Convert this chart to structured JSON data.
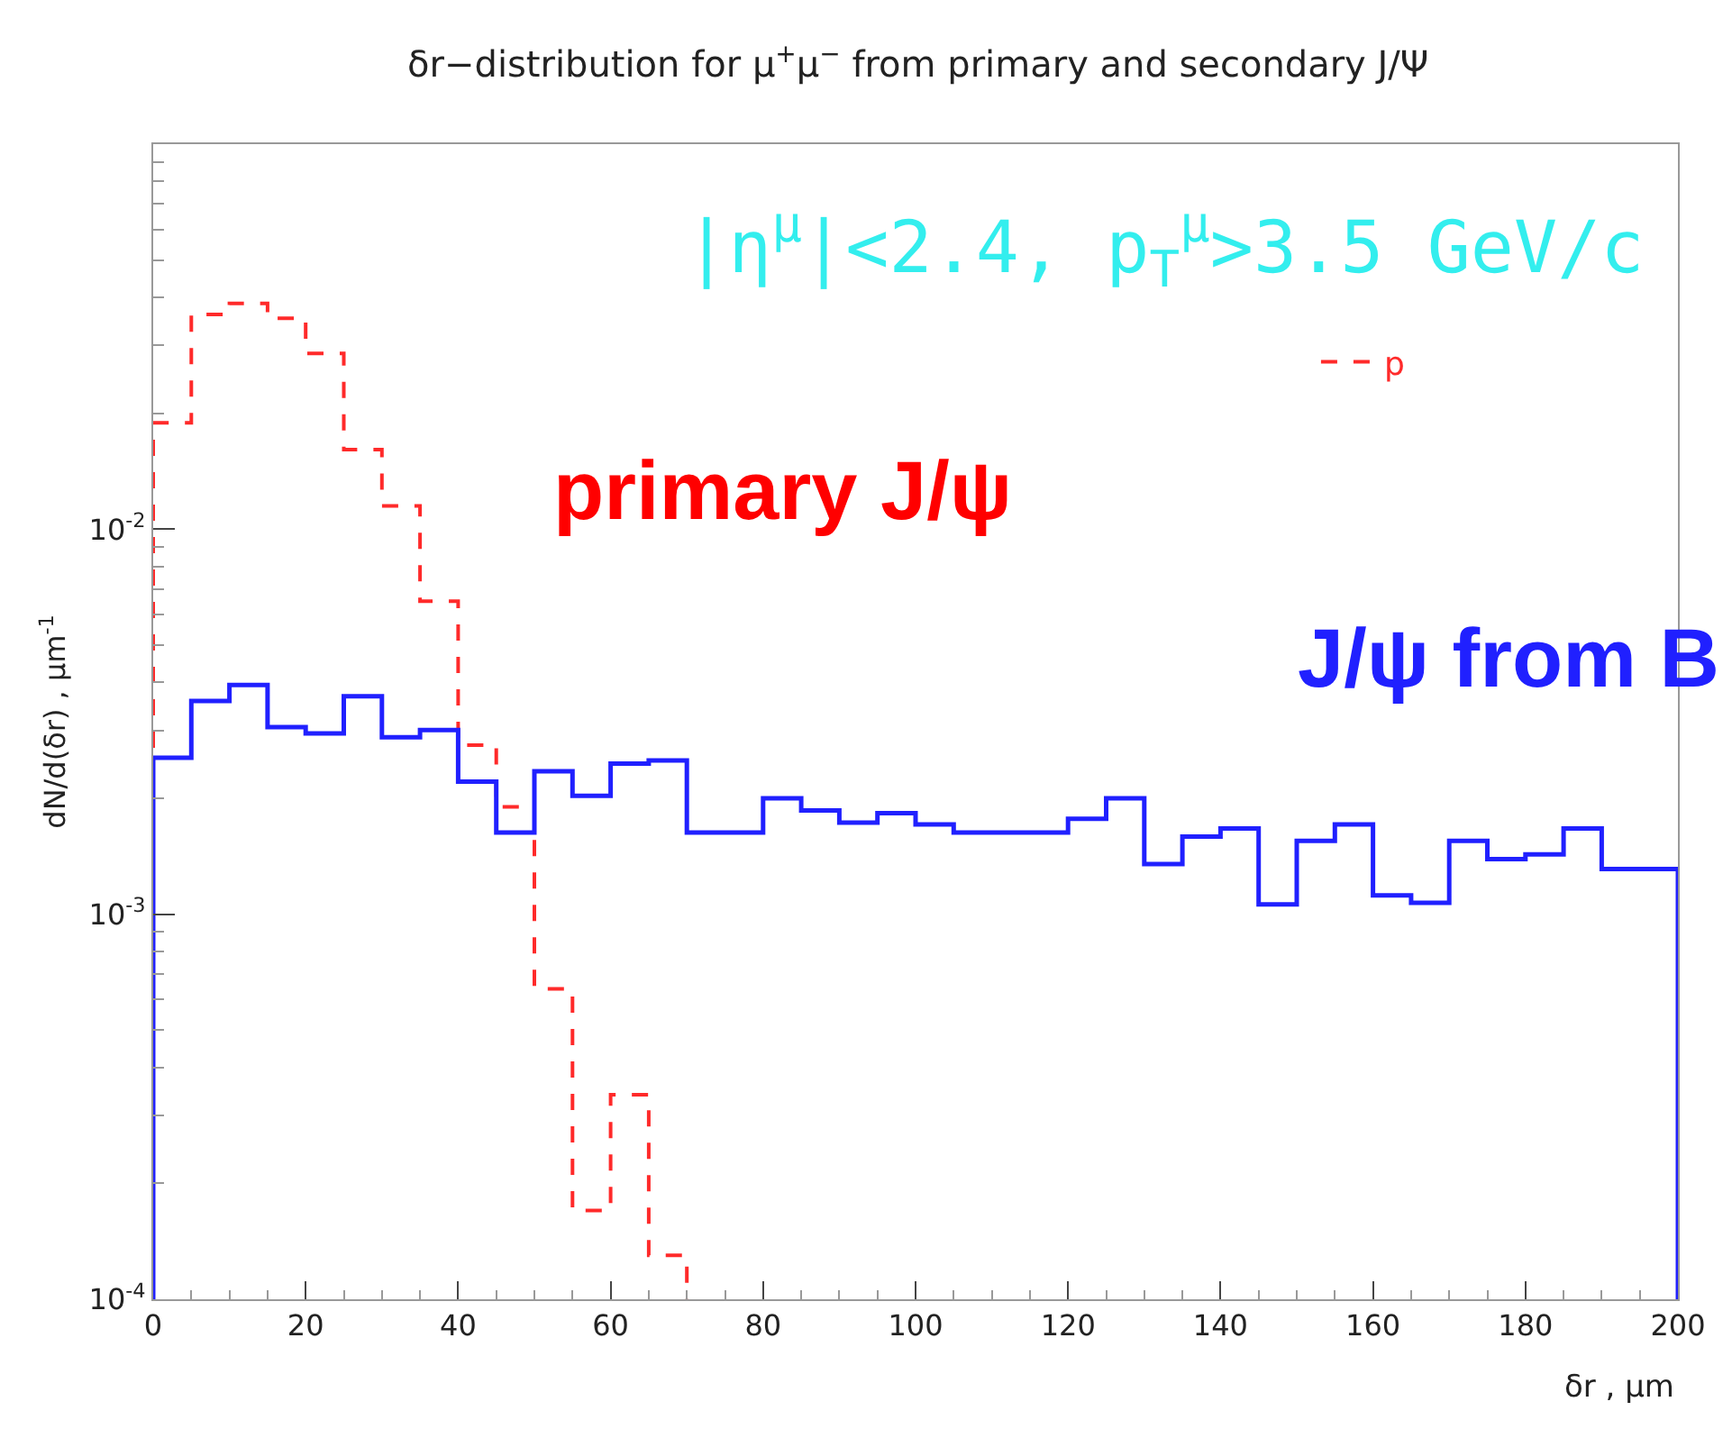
{
  "chart_data": {
    "type": "histogram",
    "title": "δr−distribution for μ$^{+}$μ$^{−}$ from primary and secondary J/Ψ",
    "xlabel": "δr , μm",
    "ylabel": "dN/d(δr) , μm$^{-1}$",
    "bins": [
      0,
      5,
      10,
      15,
      20,
      25,
      30,
      35,
      40,
      45,
      50,
      55,
      60,
      65,
      70,
      75,
      80,
      85,
      90,
      95,
      100,
      105,
      110,
      115,
      120,
      125,
      130,
      135,
      140,
      145,
      150,
      155,
      160,
      165,
      170,
      175,
      180,
      185,
      190,
      195,
      200
    ],
    "series": [
      {
        "name": "p",
        "color": "#ff2a2a",
        "line_style": "dashed",
        "bins": [
          0,
          5,
          10,
          15,
          20,
          25,
          30,
          35,
          40,
          45,
          50,
          55,
          60,
          65,
          70
        ],
        "values": [
          0.0189,
          0.0361,
          0.0386,
          0.0353,
          0.0286,
          0.0161,
          0.0115,
          0.0065,
          0.00275,
          0.0019,
          0.00064,
          0.00017,
          0.00034,
          0.00013
        ]
      },
      {
        "name": "J/ψ from B",
        "color": "#2020ff",
        "line_style": "solid",
        "values": [
          0.00255,
          0.00358,
          0.00394,
          0.00306,
          0.00295,
          0.00368,
          0.00288,
          0.00301,
          0.00221,
          0.00163,
          0.00235,
          0.00203,
          0.00246,
          0.00251,
          0.00163,
          0.00163,
          0.002,
          0.00186,
          0.00173,
          0.00183,
          0.00171,
          0.00163,
          0.00163,
          0.00163,
          0.00177,
          0.002,
          0.00135,
          0.00159,
          0.00167,
          0.00106,
          0.00155,
          0.00171,
          0.00112,
          0.00107,
          0.00155,
          0.00139,
          0.00143,
          0.00167,
          0.00131,
          0.00131
        ]
      }
    ],
    "annotations": [
      "|η$^{μ}$|<2.4, p$_{T}$$^{μ}$>3.5 GeV/c",
      "primary J/ψ"
    ],
    "log": "y",
    "xlim": [
      0,
      200
    ],
    "xticks": [
      0,
      20,
      40,
      60,
      80,
      100,
      120,
      140,
      160,
      180,
      200
    ],
    "ylim": [
      0.0001,
      0.1
    ],
    "yticks": [
      {
        "value": 0.0001,
        "label": "10$^{-4}$"
      },
      {
        "value": 0.001,
        "label": "10$^{-3}$"
      },
      {
        "value": 0.01,
        "label": "10$^{-2}$"
      }
    ],
    "legend": "top right",
    "marker": "none"
  }
}
